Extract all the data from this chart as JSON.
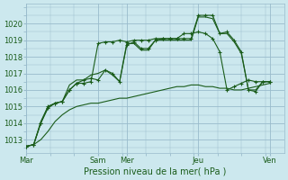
{
  "bg_color": "#cce8ee",
  "grid_color": "#99bbcc",
  "line_color": "#1a5c1a",
  "title": "Pression niveau de la mer( hPa )",
  "ylim": [
    1012.2,
    1021.2
  ],
  "yticks": [
    1013,
    1014,
    1015,
    1016,
    1017,
    1018,
    1019,
    1020
  ],
  "xtick_labels": [
    "Mar",
    "Sam",
    "Mer",
    "Jeu",
    "Ven"
  ],
  "xtick_positions": [
    0,
    60,
    84,
    144,
    204
  ],
  "xlim": [
    0,
    216
  ],
  "series": [
    {
      "x": [
        0,
        6,
        12,
        18,
        24,
        30,
        36,
        42,
        48,
        54,
        60,
        66,
        72,
        78,
        84,
        90,
        96,
        102,
        108,
        114,
        120,
        126,
        132,
        138,
        144,
        150,
        156,
        162,
        168,
        174,
        180,
        186,
        192,
        198,
        204
      ],
      "y": [
        1012.6,
        1012.7,
        1013.0,
        1013.5,
        1014.1,
        1014.5,
        1014.8,
        1015.0,
        1015.1,
        1015.2,
        1015.2,
        1015.3,
        1015.4,
        1015.5,
        1015.5,
        1015.6,
        1015.7,
        1015.8,
        1015.9,
        1016.0,
        1016.1,
        1016.2,
        1016.2,
        1016.3,
        1016.3,
        1016.2,
        1016.2,
        1016.1,
        1016.1,
        1016.0,
        1016.0,
        1016.1,
        1016.2,
        1016.3,
        1016.4
      ],
      "has_marker": false
    },
    {
      "x": [
        0,
        6,
        12,
        18,
        24,
        30,
        36,
        42,
        48,
        54,
        60,
        66,
        72,
        78,
        84,
        90,
        96,
        102,
        108,
        114,
        120,
        126,
        132,
        138,
        144,
        150,
        156,
        162,
        168,
        174,
        180,
        186,
        192,
        198,
        204
      ],
      "y": [
        1012.6,
        1012.7,
        1014.0,
        1014.9,
        1015.2,
        1015.3,
        1016.0,
        1016.4,
        1016.6,
        1016.7,
        1016.6,
        1017.2,
        1017.0,
        1016.5,
        1018.7,
        1018.9,
        1018.5,
        1018.5,
        1019.0,
        1019.1,
        1019.1,
        1019.1,
        1019.1,
        1019.1,
        1020.5,
        1020.5,
        1020.5,
        1019.4,
        1019.5,
        1019.0,
        1018.3,
        1016.0,
        1015.9,
        1016.5,
        1016.5
      ],
      "has_marker": true
    },
    {
      "x": [
        0,
        6,
        12,
        18,
        24,
        30,
        36,
        42,
        48,
        54,
        60,
        66,
        72,
        78,
        84,
        90,
        96,
        102,
        108,
        114,
        120,
        126,
        132,
        138,
        144,
        150,
        156,
        162,
        168,
        174,
        180,
        186,
        192,
        198,
        204
      ],
      "y": [
        1012.6,
        1012.7,
        1014.1,
        1015.0,
        1015.2,
        1015.3,
        1016.3,
        1016.6,
        1016.6,
        1016.9,
        1017.0,
        1017.2,
        1016.9,
        1016.5,
        1018.8,
        1018.8,
        1018.4,
        1018.4,
        1019.0,
        1019.0,
        1019.0,
        1019.0,
        1019.0,
        1019.0,
        1020.4,
        1020.4,
        1020.3,
        1019.4,
        1019.4,
        1018.9,
        1018.2,
        1016.0,
        1016.0,
        1016.5,
        1016.5
      ],
      "has_marker": false
    },
    {
      "x": [
        0,
        6,
        12,
        18,
        24,
        30,
        36,
        42,
        48,
        54,
        60,
        66,
        72,
        78,
        84,
        90,
        96,
        102,
        108,
        114,
        120,
        126,
        132,
        138,
        144,
        150,
        156,
        162,
        168,
        174,
        180,
        186,
        192,
        198,
        204
      ],
      "y": [
        1012.6,
        1012.7,
        1014.0,
        1015.0,
        1015.2,
        1015.3,
        1016.0,
        1016.4,
        1016.4,
        1016.5,
        1018.8,
        1018.9,
        1018.9,
        1019.0,
        1018.9,
        1019.0,
        1019.0,
        1019.0,
        1019.1,
        1019.1,
        1019.1,
        1019.1,
        1019.4,
        1019.4,
        1019.5,
        1019.4,
        1019.1,
        1018.3,
        1016.0,
        1016.2,
        1016.4,
        1016.6,
        1016.5,
        1016.5,
        1016.5
      ],
      "has_marker": true
    }
  ]
}
